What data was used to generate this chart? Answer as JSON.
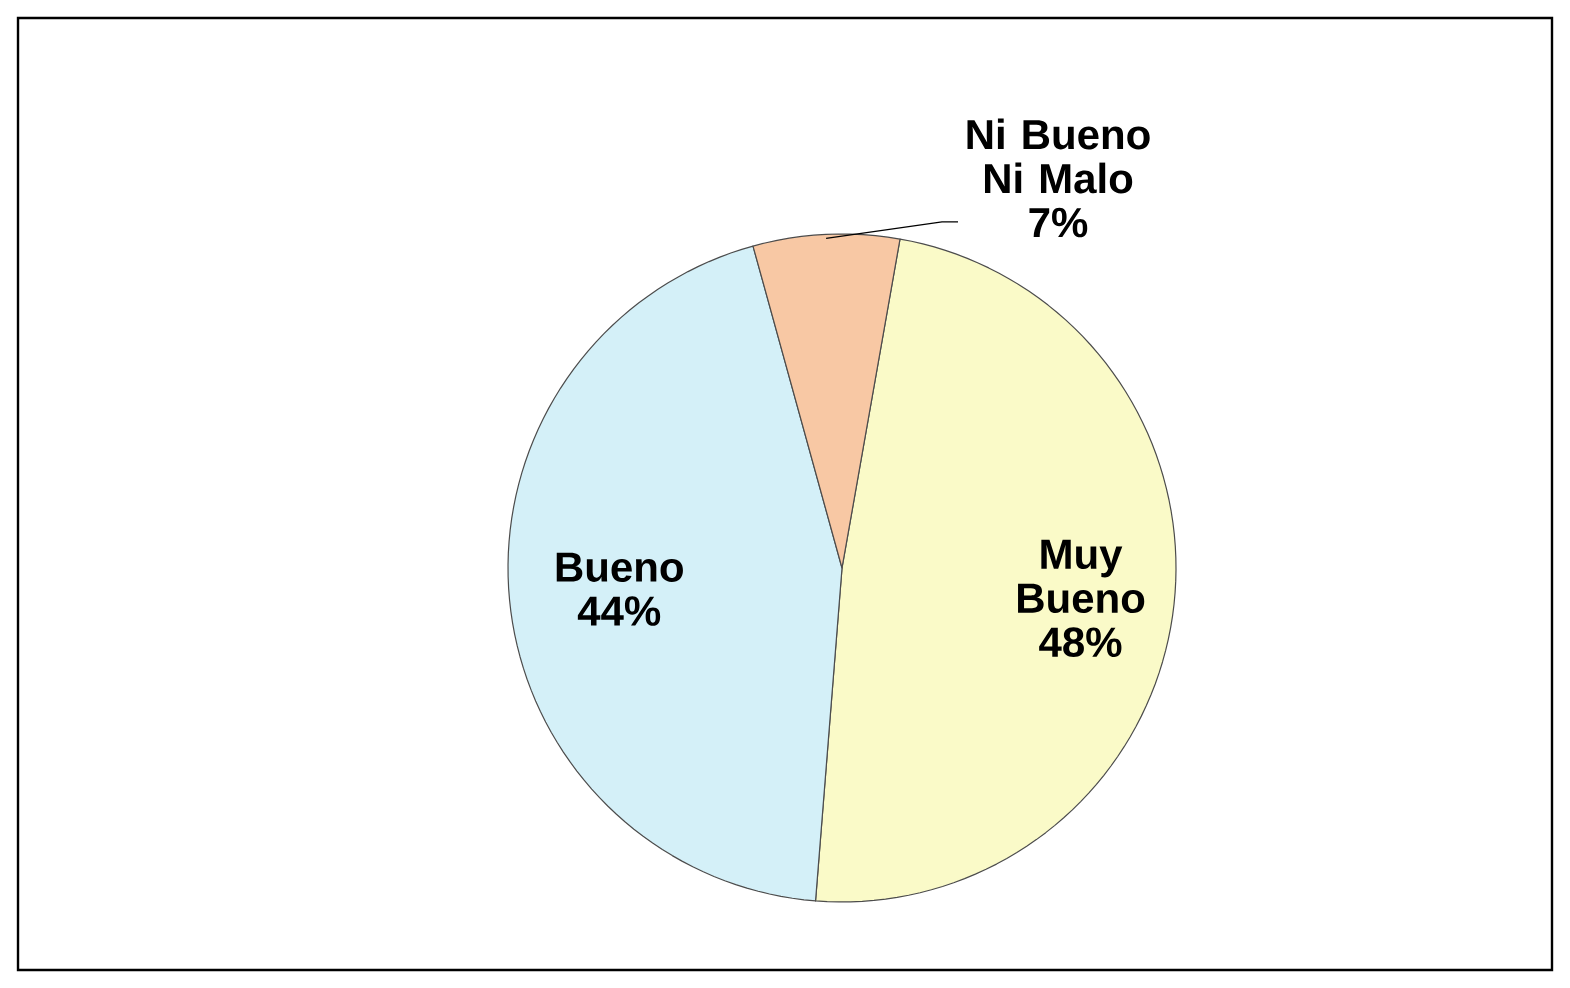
{
  "chart_data": {
    "type": "pie",
    "categories": [
      "Muy Bueno",
      "Bueno",
      "Ni Bueno Ni Malo"
    ],
    "values": [
      48,
      44,
      7
    ],
    "colors": [
      "#fafac8",
      "#d4f0f8",
      "#f8c8a4"
    ],
    "value_labels": [
      "48%",
      "44%",
      "7%"
    ]
  }
}
